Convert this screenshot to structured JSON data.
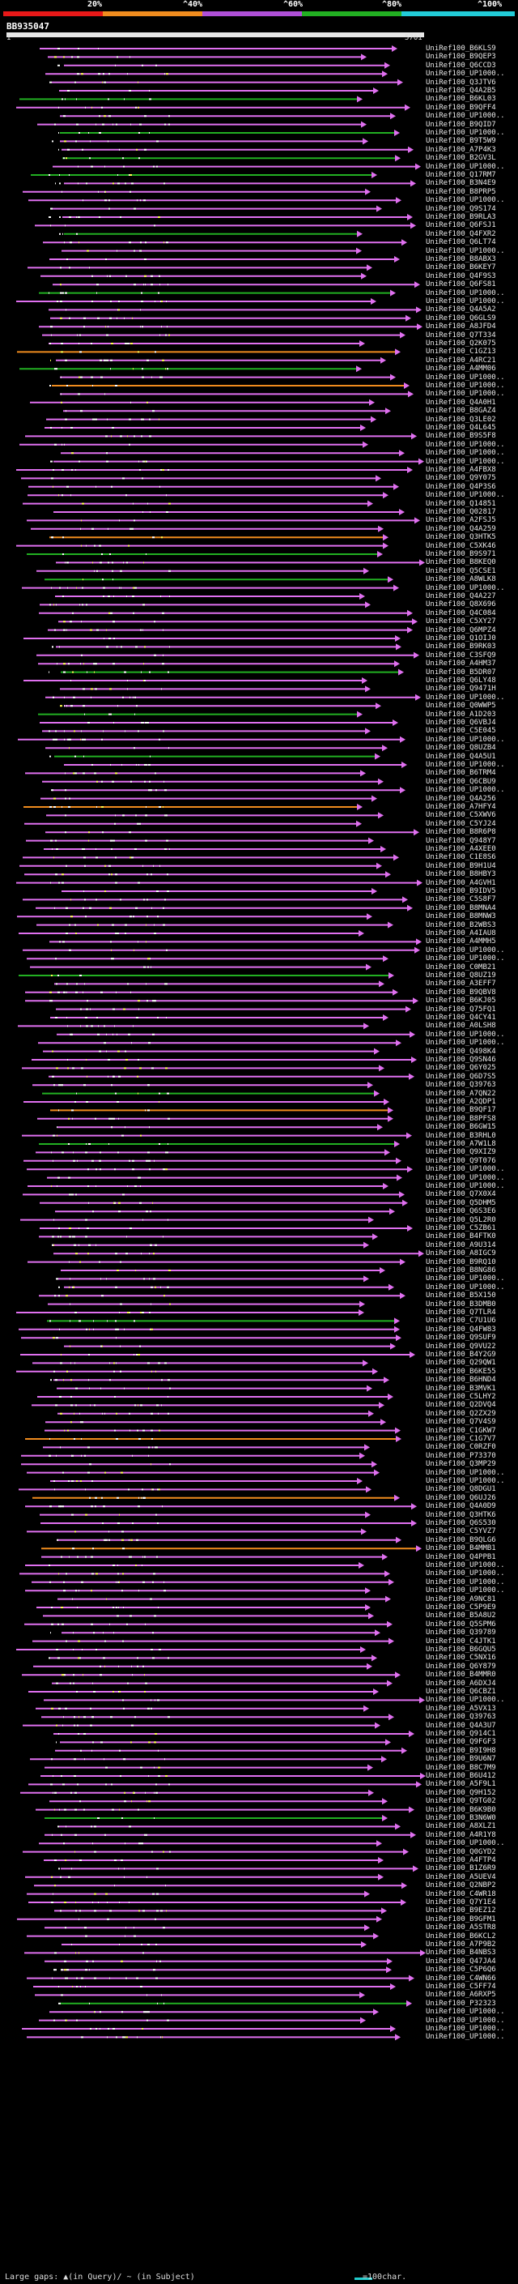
{
  "query": {
    "name": "BB935047",
    "start_label": "1",
    "end_label": "5701"
  },
  "legend": {
    "segments": [
      {
        "label": "20%",
        "color": "#e81818"
      },
      {
        "label": "^40%",
        "color": "#f08c1e"
      },
      {
        "label": "^60%",
        "color": "#b050d8"
      },
      {
        "label": "^80%",
        "color": "#22b022"
      },
      {
        "label": "^100%",
        "color": "#22ccd8"
      }
    ]
  },
  "colors": {
    "magenta": "#e070f0",
    "green": "#22b022",
    "orange": "#f08c1e",
    "yellow": "#ffff50",
    "white": "#ffffff"
  },
  "hits": [
    "UniRef100_B6KLS9",
    "UniRef100_B9QEP3",
    "UniRef100_Q6CCD3",
    "UniRef100_UP1000..",
    "UniRef100_Q3JTV6",
    "UniRef100_Q4A2B5",
    "UniRef100_B6KL03",
    "UniRef100_B9QFF4",
    "UniRef100_UP1000..",
    "UniRef100_B9QID7",
    "UniRef100_UP1000..",
    "UniRef100_B9T5W9",
    "UniRef100_A7P4K3",
    "UniRef100_B2GV3L",
    "UniRef100_UP1000..",
    "UniRef100_Q17RM7",
    "UniRef100_B3N4E9",
    "UniRef100_B8PRP5",
    "UniRef100_UP1000..",
    "UniRef100_Q9S174",
    "UniRef100_B9RLA3",
    "UniRef100_Q6FSJ1",
    "UniRef100_Q4FXR2",
    "UniRef100_Q6LT74",
    "UniRef100_UP1000..",
    "UniRef100_B8ABX3",
    "UniRef100_B6KEY7",
    "UniRef100_Q4F9S3",
    "UniRef100_Q6FS81",
    "UniRef100_UP1000..",
    "UniRef100_UP1000..",
    "UniRef100_Q4A5A2",
    "UniRef100_Q6GLS9",
    "UniRef100_A8JFD4",
    "UniRef100_Q7T334",
    "UniRef100_Q2K075",
    "UniRef100_C1GZ13",
    "UniRef100_A4RC21",
    "UniRef100_A4MM06",
    "UniRef100_UP1000..",
    "UniRef100_UP1000..",
    "UniRef100_UP1000..",
    "UniRef100_Q4A0H1",
    "UniRef100_B8GAZ4",
    "UniRef100_Q3LE02",
    "UniRef100_Q4L645",
    "UniRef100_B9S5F8",
    "UniRef100_UP1000..",
    "UniRef100_UP1000..",
    "UniRef100_UP1000..",
    "UniRef100_A4FBX8",
    "UniRef100_Q9Y075",
    "UniRef100_Q4P3S6",
    "UniRef100_UP1000..",
    "UniRef100_Q14851",
    "UniRef100_Q02817",
    "UniRef100_A2FSJ5",
    "UniRef100_Q4A259",
    "UniRef100_Q3HTK5",
    "UniRef100_C5XK46",
    "UniRef100_B9S971",
    "UniRef100_B8KEQ0",
    "UniRef100_Q5CSE1",
    "UniRef100_A8WLK8",
    "UniRef100_UP1000..",
    "UniRef100_Q4A227",
    "UniRef100_Q8X696",
    "UniRef100_Q4C084",
    "UniRef100_C5XY27",
    "UniRef100_Q6MPZ4",
    "UniRef100_Q1OIJ0",
    "UniRef100_B9RK03",
    "UniRef100_C3SFQ9",
    "UniRef100_A4HM37",
    "UniRef100_B5DR07",
    "UniRef100_Q6LY48",
    "UniRef100_Q9471H",
    "UniRef100_UP1000..",
    "UniRef100_Q0WWP5",
    "UniRef100_A1D203",
    "UniRef100_Q6VBJ4",
    "UniRef100_C5E045",
    "UniRef100_UP1000..",
    "UniRef100_Q8UZB4",
    "UniRef100_Q4A5U1",
    "UniRef100_UP1000..",
    "UniRef100_B6TRM4",
    "UniRef100_Q6CBU9",
    "UniRef100_UP1000..",
    "UniRef100_Q4A256",
    "UniRef100_A7HFY4",
    "UniRef100_C5XWV6",
    "UniRef100_C5YJ24",
    "UniRef100_B8R6P8",
    "UniRef100_Q948Y7",
    "UniRef100_A4XEE0",
    "UniRef100_C1E8S6",
    "UniRef100_B9H1U4",
    "UniRef100_B8HBY3",
    "UniRef100_A4GVH1",
    "UniRef100_B9IDV5",
    "UniRef100_C5S8F7",
    "UniRef100_B8MNA4",
    "UniRef100_B8MNW3",
    "UniRef100_B2WBS3",
    "UniRef100_A4IAU8",
    "UniRef100_A4MMH5",
    "UniRef100_UP1000..",
    "UniRef100_UP1000..",
    "UniRef100_C0MB21",
    "UniRef100_Q8UZ19",
    "UniRef100_A3EFF7",
    "UniRef100_B9QBV8",
    "UniRef100_B6KJ05",
    "UniRef100_Q75FQ1",
    "UniRef100_Q4CY41",
    "UniRef100_A0LSH8",
    "UniRef100_UP1000..",
    "UniRef100_UP1000..",
    "UniRef100_Q498K4",
    "UniRef100_Q9SN46",
    "UniRef100_Q6Y025",
    "UniRef100_Q6D7S5",
    "UniRef100_Q39763",
    "UniRef100_A7QN22",
    "UniRef100_A2QDP1",
    "UniRef100_B9QF17",
    "UniRef100_B8PFS8",
    "UniRef100_B6GW15",
    "UniRef100_B3RHL0",
    "UniRef100_A7W1L8",
    "UniRef100_Q9XIZ9",
    "UniRef100_Q9T076",
    "UniRef100_UP1000..",
    "UniRef100_UP1000..",
    "UniRef100_UP1000..",
    "UniRef100_Q7X0X4",
    "UniRef100_Q5DHM5",
    "UniRef100_Q6S3E6",
    "UniRef100_Q5L2R0",
    "UniRef100_C5ZB61",
    "UniRef100_B4FTK0",
    "UniRef100_A9U314",
    "UniRef100_A8IGC9",
    "UniRef100_B9RQ10",
    "UniRef100_B8NG86",
    "UniRef100_UP1000..",
    "UniRef100_UP1000..",
    "UniRef100_B5X150",
    "UniRef100_B3DMB0",
    "UniRef100_Q7TLR4",
    "UniRef100_C7U1U6",
    "UniRef100_Q4FW83",
    "UniRef100_Q9SUF9",
    "UniRef100_Q9VU22",
    "UniRef100_B4Y2G9",
    "UniRef100_Q29QW1",
    "UniRef100_B6KE55",
    "UniRef100_B6HND4",
    "UniRef100_B3MVK1",
    "UniRef100_C5LHY2",
    "UniRef100_Q2DVQ4",
    "UniRef100_Q2ZX29",
    "UniRef100_Q7V4S9",
    "UniRef100_C1GKW7",
    "UniRef100_C1G7V7",
    "UniRef100_C0RZF0",
    "UniRef100_P73370",
    "UniRef100_Q3MP29",
    "UniRef100_UP1000..",
    "UniRef100_UP1000..",
    "UniRef100_Q8DGU1",
    "UniRef100_Q6UJ26",
    "UniRef100_Q4A0D9",
    "UniRef100_Q3HTK6",
    "UniRef100_Q6S530",
    "UniRef100_C5YVZ7",
    "UniRef100_B9QLG6",
    "UniRef100_B4MMB1",
    "UniRef100_Q4PPB1",
    "UniRef100_UP1000..",
    "UniRef100_UP1000..",
    "UniRef100_UP1000..",
    "UniRef100_UP1000..",
    "UniRef100_A9NC81",
    "UniRef100_C5P9E9",
    "UniRef100_B5A8U2",
    "UniRef100_Q5SPM6",
    "UniRef100_Q39789",
    "UniRef100_C4JTK1",
    "UniRef100_B6GQU5",
    "UniRef100_C5NX16",
    "UniRef100_Q6Y879",
    "UniRef100_B4MMR0",
    "UniRef100_A6DXJ4",
    "UniRef100_Q6CBZ1",
    "UniRef100_UP1000..",
    "UniRef100_A5VX13",
    "UniRef100_Q39763",
    "UniRef100_Q4A3U7",
    "UniRef100_Q914C1",
    "UniRef100_Q9FGF3",
    "UniRef100_B9I9H8",
    "UniRef100_B9U6N7",
    "UniRef100_B8C7M9",
    "UniRef100_B6U412",
    "UniRef100_A5F9L1",
    "UniRef100_Q9H152",
    "UniRef100_Q9TG02",
    "UniRef100_B6K9B0",
    "UniRef100_B3N6W0",
    "UniRef100_A8XLZ1",
    "UniRef100_A4R1Y8",
    "UniRef100_UP1000..",
    "UniRef100_Q0GYD2",
    "UniRef100_A4FTP4",
    "UniRef100_B1Z6R9",
    "UniRef100_A5UEV4",
    "UniRef100_Q2NBP2",
    "UniRef100_C4WR18",
    "UniRef100_Q7Y1E4",
    "UniRef100_B9EZ12",
    "UniRef100_B9GFM1",
    "UniRef100_A5STR8",
    "UniRef100_B6KCL2",
    "UniRef100_A7P9B2",
    "UniRef100_B4NBS3",
    "UniRef100_Q47JA4",
    "UniRef100_C5P6Q6",
    "UniRef100_C4WN66",
    "UniRef100_C5FF74",
    "UniRef100_A6RXP5",
    "UniRef100_P32323",
    "UniRef100_UP1000..",
    "UniRef100_UP1000..",
    "UniRef100_UP1000..",
    "UniRef100_UP1000.."
  ],
  "footer": {
    "gaps_text": "Large gaps: ▲(in Query)/ ~ (in Subject)",
    "scale_text": "=100char."
  }
}
